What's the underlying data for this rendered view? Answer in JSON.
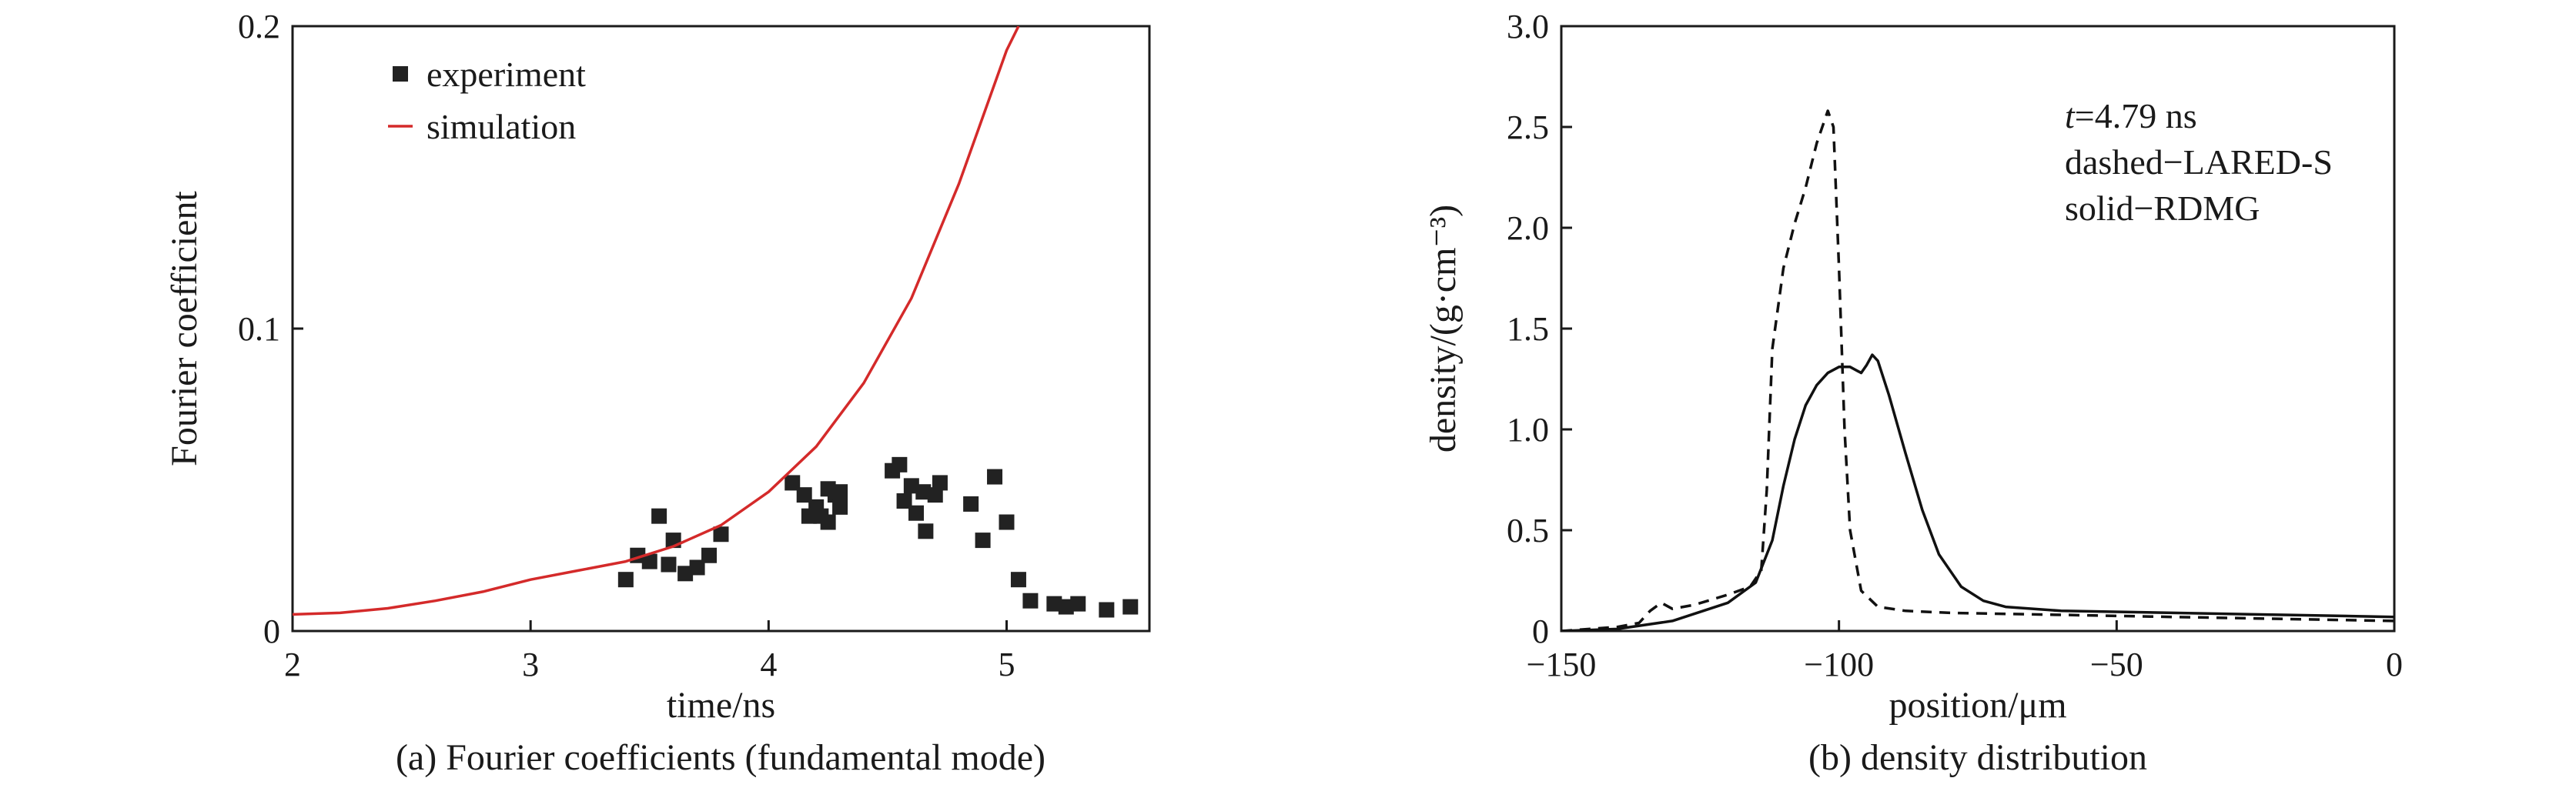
{
  "chart_data": [
    {
      "type": "scatter",
      "caption": "(a) Fourier coefficients (fundamental mode)",
      "xlabel": "time/ns",
      "ylabel": "Fourier coefficient",
      "xlim": [
        2,
        5.6
      ],
      "ylim": [
        0,
        0.2
      ],
      "xticks": [
        2,
        3,
        4,
        5
      ],
      "xtick_labels": [
        "2",
        "3",
        "4",
        "5"
      ],
      "yticks": [
        0,
        0.1,
        0.2
      ],
      "ytick_labels": [
        "0",
        "0.1",
        "0.2"
      ],
      "legend_position": "top-left",
      "series": [
        {
          "name": "experiment",
          "kind": "scatter",
          "marker": "square",
          "color": "#222222",
          "points": [
            [
              3.4,
              0.017
            ],
            [
              3.45,
              0.025
            ],
            [
              3.5,
              0.023
            ],
            [
              3.54,
              0.038
            ],
            [
              3.58,
              0.022
            ],
            [
              3.6,
              0.03
            ],
            [
              3.65,
              0.019
            ],
            [
              3.7,
              0.021
            ],
            [
              3.75,
              0.025
            ],
            [
              3.8,
              0.032
            ],
            [
              4.1,
              0.049
            ],
            [
              4.15,
              0.045
            ],
            [
              4.17,
              0.038
            ],
            [
              4.2,
              0.041
            ],
            [
              4.22,
              0.038
            ],
            [
              4.25,
              0.047
            ],
            [
              4.25,
              0.036
            ],
            [
              4.28,
              0.045
            ],
            [
              4.3,
              0.041
            ],
            [
              4.3,
              0.046
            ],
            [
              4.52,
              0.053
            ],
            [
              4.55,
              0.055
            ],
            [
              4.57,
              0.043
            ],
            [
              4.6,
              0.048
            ],
            [
              4.62,
              0.039
            ],
            [
              4.65,
              0.046
            ],
            [
              4.66,
              0.033
            ],
            [
              4.7,
              0.045
            ],
            [
              4.72,
              0.049
            ],
            [
              4.85,
              0.042
            ],
            [
              4.9,
              0.03
            ],
            [
              4.95,
              0.051
            ],
            [
              5.0,
              0.036
            ],
            [
              5.05,
              0.017
            ],
            [
              5.1,
              0.01
            ],
            [
              5.2,
              0.009
            ],
            [
              5.25,
              0.008
            ],
            [
              5.3,
              0.009
            ],
            [
              5.42,
              0.007
            ],
            [
              5.52,
              0.008
            ]
          ]
        },
        {
          "name": "simulation",
          "kind": "line",
          "color": "#d42a2a",
          "dash": "solid",
          "points": [
            [
              2.0,
              0.0055
            ],
            [
              2.2,
              0.006
            ],
            [
              2.4,
              0.0075
            ],
            [
              2.6,
              0.01
            ],
            [
              2.8,
              0.013
            ],
            [
              3.0,
              0.017
            ],
            [
              3.2,
              0.02
            ],
            [
              3.4,
              0.023
            ],
            [
              3.6,
              0.028
            ],
            [
              3.8,
              0.035
            ],
            [
              4.0,
              0.046
            ],
            [
              4.2,
              0.061
            ],
            [
              4.4,
              0.082
            ],
            [
              4.6,
              0.11
            ],
            [
              4.8,
              0.148
            ],
            [
              5.0,
              0.192
            ],
            [
              5.05,
              0.2
            ]
          ]
        }
      ]
    },
    {
      "type": "line",
      "caption": "(b) density distribution",
      "xlabel": "position/μm",
      "ylabel": "density/(g·cm⁻³)",
      "xlim": [
        -150,
        0
      ],
      "ylim": [
        0,
        3.0
      ],
      "xticks": [
        -150,
        -100,
        -50,
        0
      ],
      "xtick_labels": [
        "−150",
        "−100",
        "−50",
        "0"
      ],
      "yticks": [
        0,
        0.5,
        1.0,
        1.5,
        2.0,
        2.5,
        3.0
      ],
      "ytick_labels": [
        "0",
        "0.5",
        "1.0",
        "1.5",
        "2.0",
        "2.5",
        "3.0"
      ],
      "annotation": {
        "t_symbol": "t",
        "time": "=4.79 ns",
        "line2": "dashed−LARED-S",
        "line3": "solid−RDMG"
      },
      "series": [
        {
          "name": "LARED-S",
          "kind": "line",
          "dash": "dashed",
          "color": "#111111",
          "points": [
            [
              -150,
              0.0
            ],
            [
              -145,
              0.01
            ],
            [
              -140,
              0.02
            ],
            [
              -136,
              0.04
            ],
            [
              -134,
              0.1
            ],
            [
              -132,
              0.14
            ],
            [
              -130,
              0.11
            ],
            [
              -126,
              0.13
            ],
            [
              -120,
              0.18
            ],
            [
              -116,
              0.22
            ],
            [
              -114,
              0.3
            ],
            [
              -113,
              0.7
            ],
            [
              -112,
              1.4
            ],
            [
              -110,
              1.8
            ],
            [
              -108,
              2.02
            ],
            [
              -106,
              2.2
            ],
            [
              -104,
              2.42
            ],
            [
              -102,
              2.58
            ],
            [
              -101,
              2.5
            ],
            [
              -100,
              1.8
            ],
            [
              -99,
              1.0
            ],
            [
              -98,
              0.5
            ],
            [
              -96,
              0.2
            ],
            [
              -93,
              0.12
            ],
            [
              -88,
              0.1
            ],
            [
              -80,
              0.09
            ],
            [
              -60,
              0.08
            ],
            [
              -40,
              0.07
            ],
            [
              -20,
              0.06
            ],
            [
              0,
              0.05
            ]
          ]
        },
        {
          "name": "RDMG",
          "kind": "line",
          "dash": "solid",
          "color": "#111111",
          "points": [
            [
              -150,
              0.0
            ],
            [
              -140,
              0.01
            ],
            [
              -130,
              0.05
            ],
            [
              -120,
              0.14
            ],
            [
              -115,
              0.24
            ],
            [
              -112,
              0.45
            ],
            [
              -110,
              0.72
            ],
            [
              -108,
              0.95
            ],
            [
              -106,
              1.12
            ],
            [
              -104,
              1.22
            ],
            [
              -102,
              1.28
            ],
            [
              -100,
              1.31
            ],
            [
              -98,
              1.31
            ],
            [
              -96,
              1.28
            ],
            [
              -95,
              1.32
            ],
            [
              -94,
              1.37
            ],
            [
              -93,
              1.34
            ],
            [
              -91,
              1.17
            ],
            [
              -88,
              0.88
            ],
            [
              -85,
              0.6
            ],
            [
              -82,
              0.38
            ],
            [
              -78,
              0.22
            ],
            [
              -74,
              0.15
            ],
            [
              -70,
              0.12
            ],
            [
              -60,
              0.1
            ],
            [
              -40,
              0.09
            ],
            [
              -20,
              0.08
            ],
            [
              0,
              0.07
            ]
          ]
        }
      ]
    }
  ]
}
